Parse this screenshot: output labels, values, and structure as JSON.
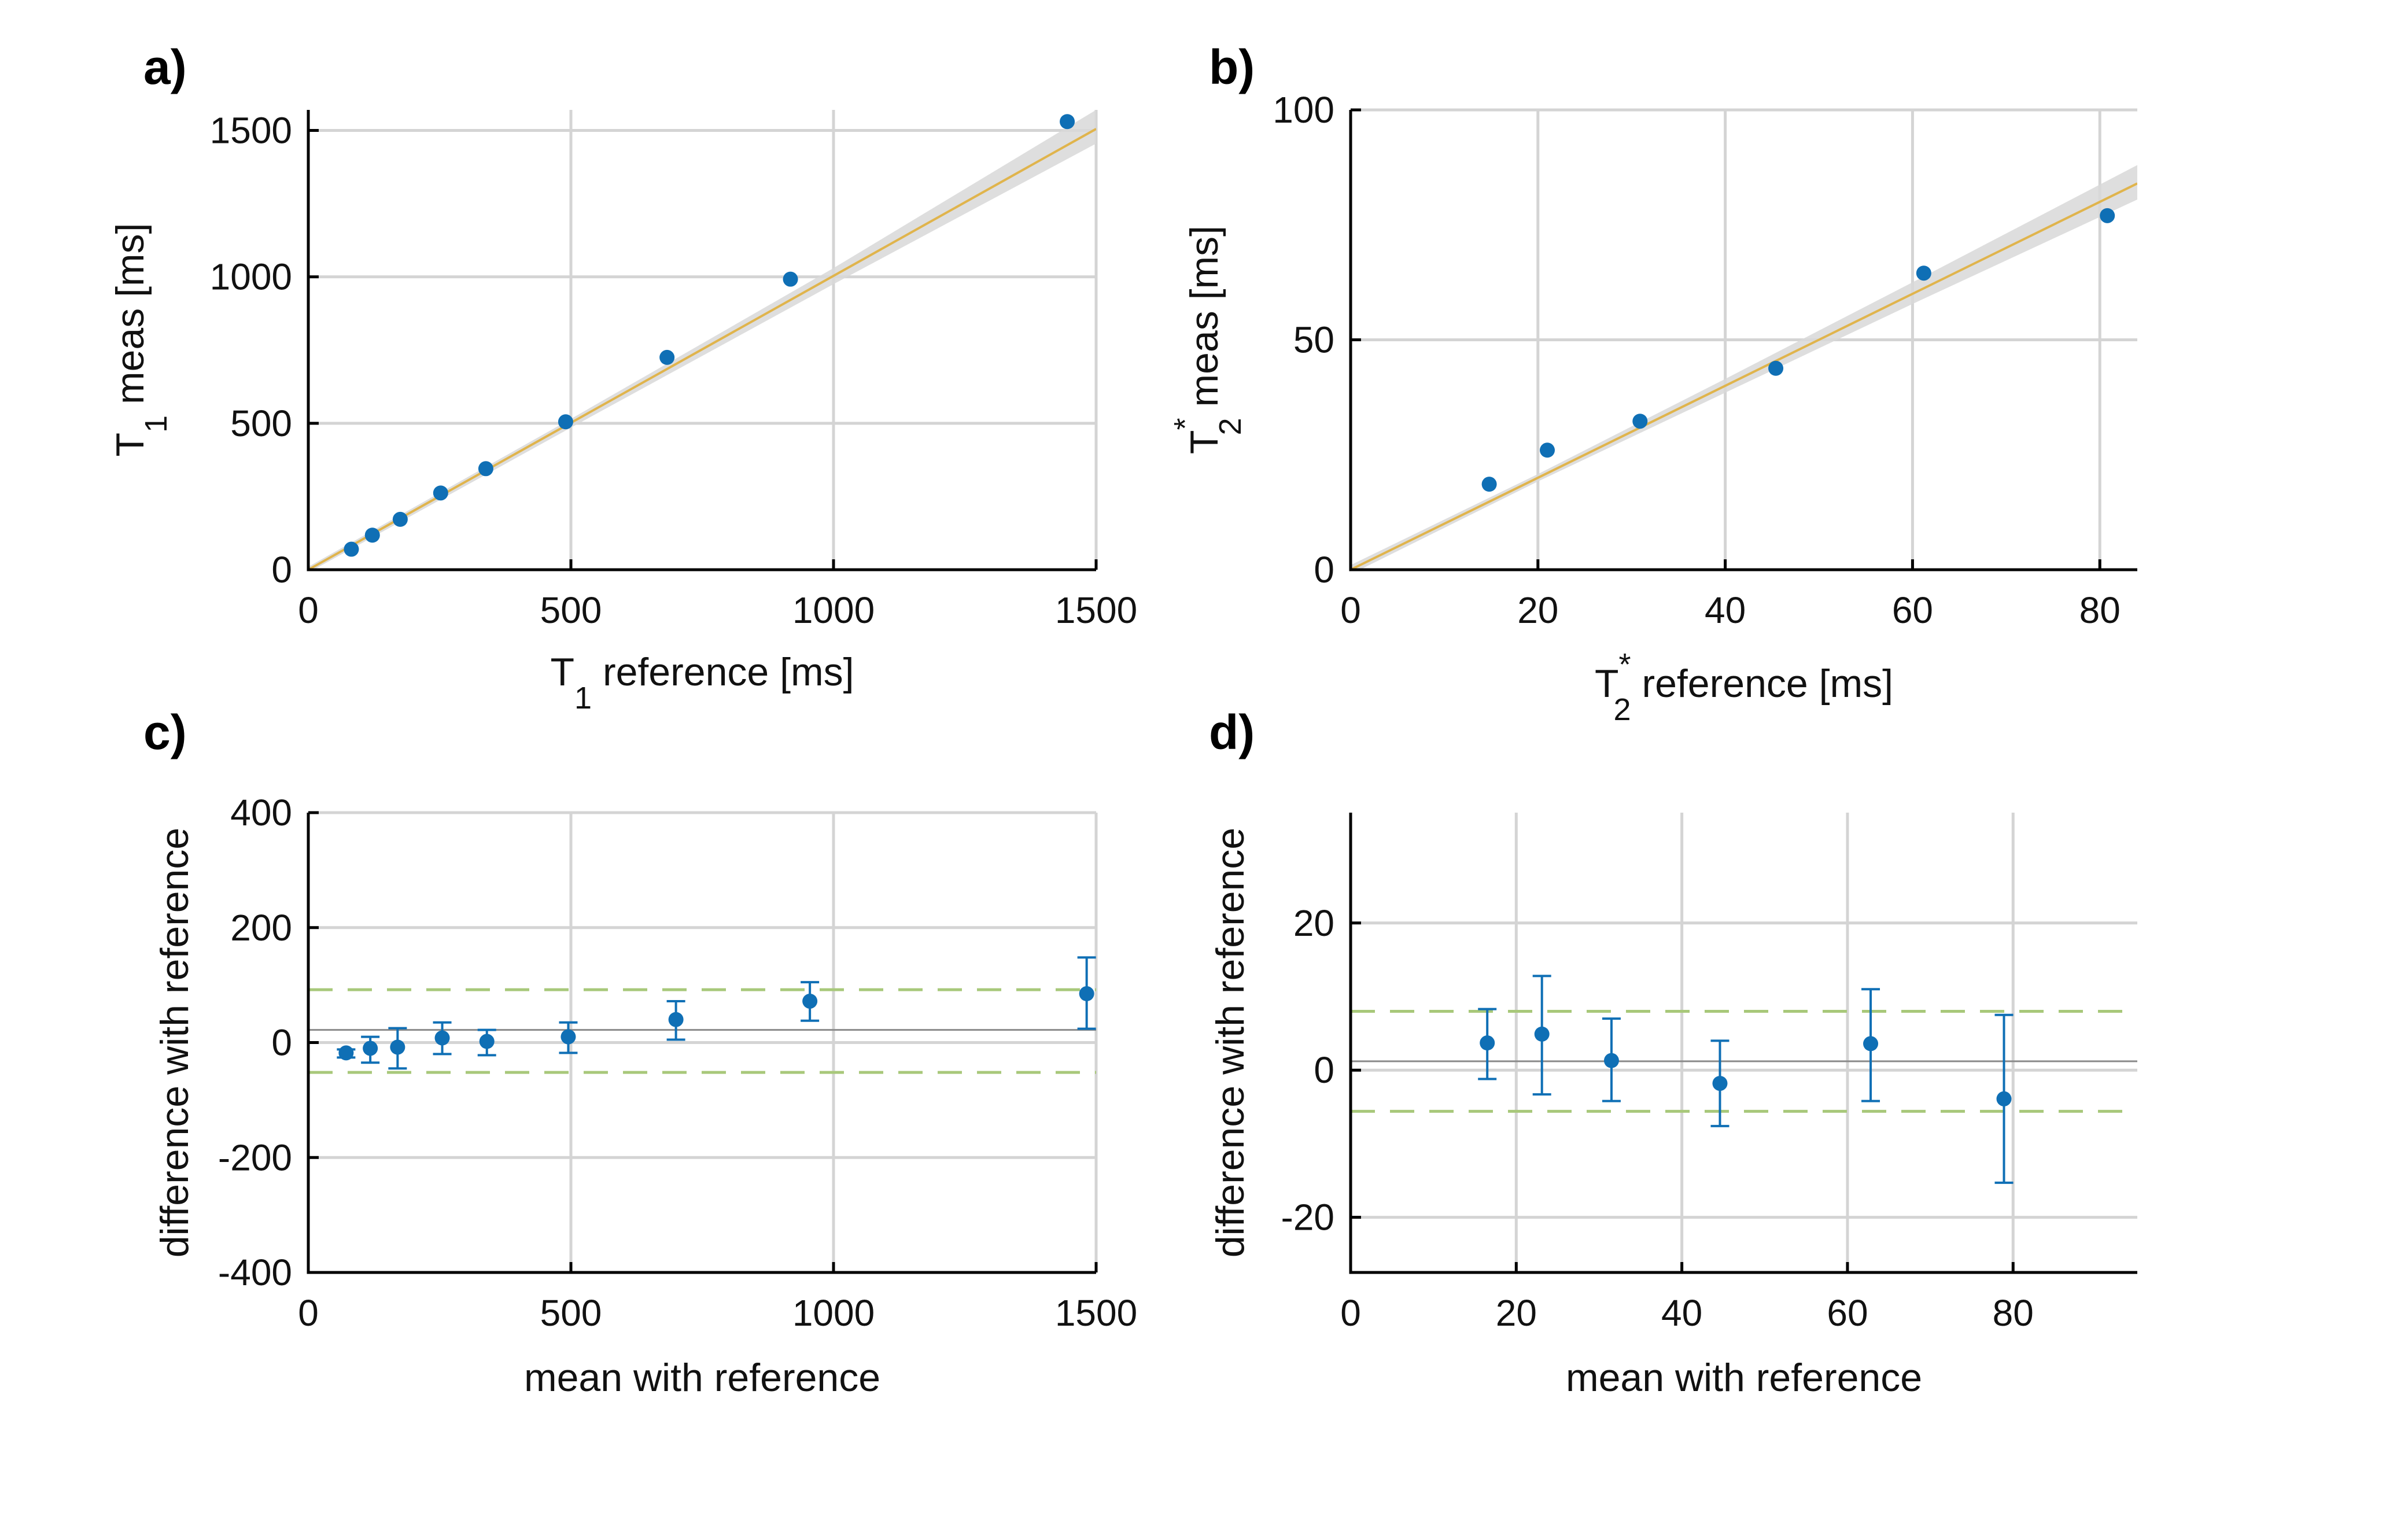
{
  "chart_data": [
    {
      "panel": "a)",
      "type": "scatter",
      "xlabel": {
        "main": "T",
        "sub": "1",
        "sup": "",
        "rest": " reference [ms]"
      },
      "ylabel": {
        "main": "T",
        "sub": "1",
        "sup": "",
        "rest": " meas [ms]"
      },
      "xlim": [
        0,
        1500
      ],
      "ylim": [
        0,
        1570
      ],
      "xticks": [
        0,
        500,
        1000,
        1500
      ],
      "xtick_labels": [
        "0",
        "500",
        "1000",
        "1500"
      ],
      "yticks": [
        0,
        500,
        1000,
        1500
      ],
      "ytick_labels": [
        "0",
        "500",
        "1000",
        "1500"
      ],
      "grid": true,
      "points": {
        "x": [
          82,
          122,
          175,
          252,
          338,
          490,
          683,
          918,
          1445
        ],
        "y": [
          70,
          118,
          172,
          262,
          345,
          505,
          725,
          992,
          1530
        ]
      },
      "fit": {
        "x": [
          0,
          1500
        ],
        "y": [
          0,
          1505
        ]
      },
      "ci_band": {
        "x": [
          0,
          500,
          1000,
          1500
        ],
        "lower": [
          -10,
          485,
          975,
          1455
        ],
        "upper": [
          10,
          515,
          1030,
          1570
        ]
      },
      "colors": {
        "points": "#0f6fb5",
        "fit": "#e0b44c",
        "band": "#d8d8d8"
      }
    },
    {
      "panel": "b)",
      "type": "scatter",
      "xlabel": {
        "main": "T",
        "sub": "2",
        "sup": "*",
        "rest": " reference [ms]"
      },
      "ylabel": {
        "main": "T",
        "sub": "2",
        "sup": "*",
        "rest": " meas [ms]"
      },
      "xlim": [
        0,
        84
      ],
      "ylim": [
        0,
        100
      ],
      "xticks": [
        0,
        20,
        40,
        60,
        80
      ],
      "xtick_labels": [
        "0",
        "20",
        "40",
        "60",
        "80"
      ],
      "yticks": [
        0,
        50,
        100
      ],
      "ytick_labels": [
        "0",
        "50",
        "100"
      ],
      "grid": true,
      "points": {
        "x": [
          14.8,
          21.0,
          30.9,
          45.4,
          61.2,
          80.8
        ],
        "y": [
          18.6,
          26.0,
          32.3,
          43.8,
          64.5,
          77.0
        ]
      },
      "fit": {
        "x": [
          0,
          84
        ],
        "y": [
          0,
          84
        ]
      },
      "ci_band": {
        "x": [
          0,
          20,
          40,
          60,
          84
        ],
        "lower": [
          -1,
          19.2,
          38.5,
          57.8,
          80.5
        ],
        "upper": [
          1,
          20.8,
          41.5,
          62.5,
          88
        ]
      },
      "colors": {
        "points": "#0f6fb5",
        "fit": "#e0b44c",
        "band": "#d8d8d8"
      }
    },
    {
      "panel": "c)",
      "type": "scatter",
      "xlabel": {
        "main": "mean with reference",
        "sub": "",
        "sup": "",
        "rest": ""
      },
      "ylabel": {
        "main": "difference with reference",
        "sub": "",
        "sup": "",
        "rest": ""
      },
      "xlim": [
        0,
        1500
      ],
      "ylim": [
        -400,
        400
      ],
      "xticks": [
        0,
        500,
        1000,
        1500
      ],
      "xtick_labels": [
        "0",
        "500",
        "1000",
        "1500"
      ],
      "yticks": [
        -400,
        -200,
        0,
        200,
        400
      ],
      "ytick_labels": [
        "-400",
        "-200",
        "0",
        "200",
        "400"
      ],
      "grid": true,
      "points": {
        "x": [
          72,
          118,
          170,
          255,
          340,
          495,
          700,
          955,
          1482
        ],
        "y": [
          -18,
          -10,
          -8,
          8,
          2,
          10,
          40,
          72,
          85
        ],
        "err_low": [
          -26,
          -35,
          -45,
          -20,
          -22,
          -18,
          5,
          38,
          24
        ],
        "err_high": [
          -12,
          10,
          25,
          35,
          22,
          35,
          72,
          105,
          148
        ]
      },
      "mean_line": 22,
      "limits": [
        -52,
        92
      ],
      "colors": {
        "points": "#0f6fb5",
        "mean": "#8a8a8a",
        "limits": "#a8c87a"
      }
    },
    {
      "panel": "d)",
      "type": "scatter",
      "xlabel": {
        "main": "mean with reference",
        "sub": "",
        "sup": "",
        "rest": ""
      },
      "ylabel": {
        "main": "difference with reference",
        "sub": "",
        "sup": "",
        "rest": ""
      },
      "xlim": [
        0,
        95
      ],
      "ylim": [
        -27.5,
        35
      ],
      "xticks": [
        0,
        20,
        40,
        60,
        80
      ],
      "xtick_labels": [
        "0",
        "20",
        "40",
        "60",
        "80"
      ],
      "yticks": [
        -20,
        0,
        20
      ],
      "ytick_labels": [
        "-20",
        "0",
        "20"
      ],
      "grid": true,
      "points": {
        "x": [
          16.5,
          23.1,
          31.5,
          44.6,
          62.8,
          78.9
        ],
        "y": [
          3.7,
          4.9,
          1.3,
          -1.8,
          3.6,
          -3.9
        ],
        "err_low": [
          -1.2,
          -3.3,
          -4.2,
          -7.6,
          -4.2,
          -15.3
        ],
        "err_high": [
          8.3,
          12.8,
          7.0,
          4.0,
          11.0,
          7.5
        ]
      },
      "mean_line": 1.2,
      "limits": [
        -5.6,
        8.0
      ],
      "colors": {
        "points": "#0f6fb5",
        "mean": "#8a8a8a",
        "limits": "#a8c87a"
      }
    }
  ]
}
